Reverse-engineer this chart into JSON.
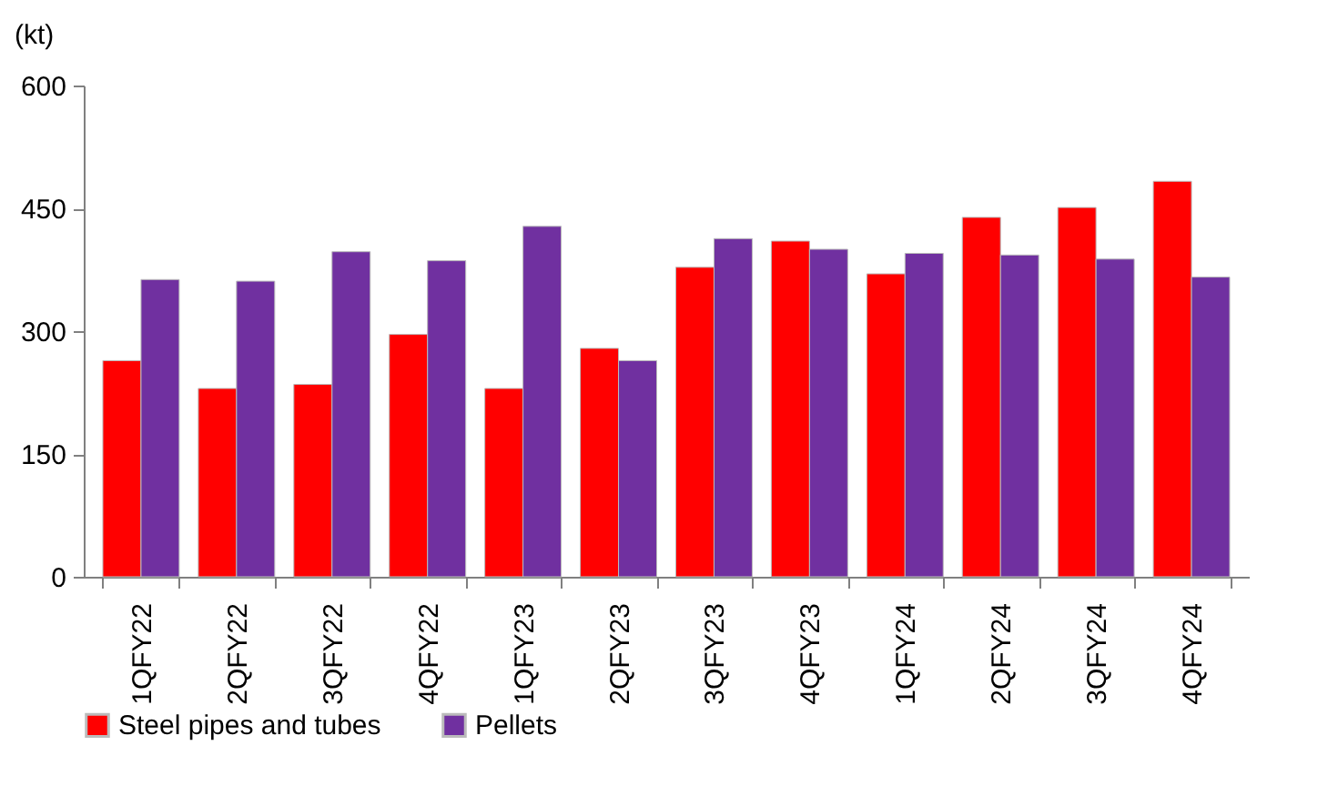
{
  "chart_data": {
    "type": "bar",
    "ylabel": "(kt)",
    "categories": [
      "1QFY22",
      "2QFY22",
      "3QFY22",
      "4QFY22",
      "1QFY23",
      "2QFY23",
      "3QFY23",
      "4QFY23",
      "1QFY24",
      "2QFY24",
      "3QFY24",
      "4QFY24"
    ],
    "series": [
      {
        "name": "Steel pipes and tubes",
        "color": "#ff0000",
        "values": [
          264,
          230,
          235,
          296,
          230,
          279,
          378,
          410,
          370,
          439,
          451,
          483
        ]
      },
      {
        "name": "Pellets",
        "color": "#7030a0",
        "values": [
          363,
          361,
          397,
          386,
          428,
          264,
          413,
          400,
          395,
          393,
          388,
          366
        ]
      }
    ],
    "ylim": [
      0,
      600
    ],
    "yticks": [
      0,
      150,
      300,
      450,
      600
    ],
    "grid": false,
    "legend": "bottom"
  }
}
